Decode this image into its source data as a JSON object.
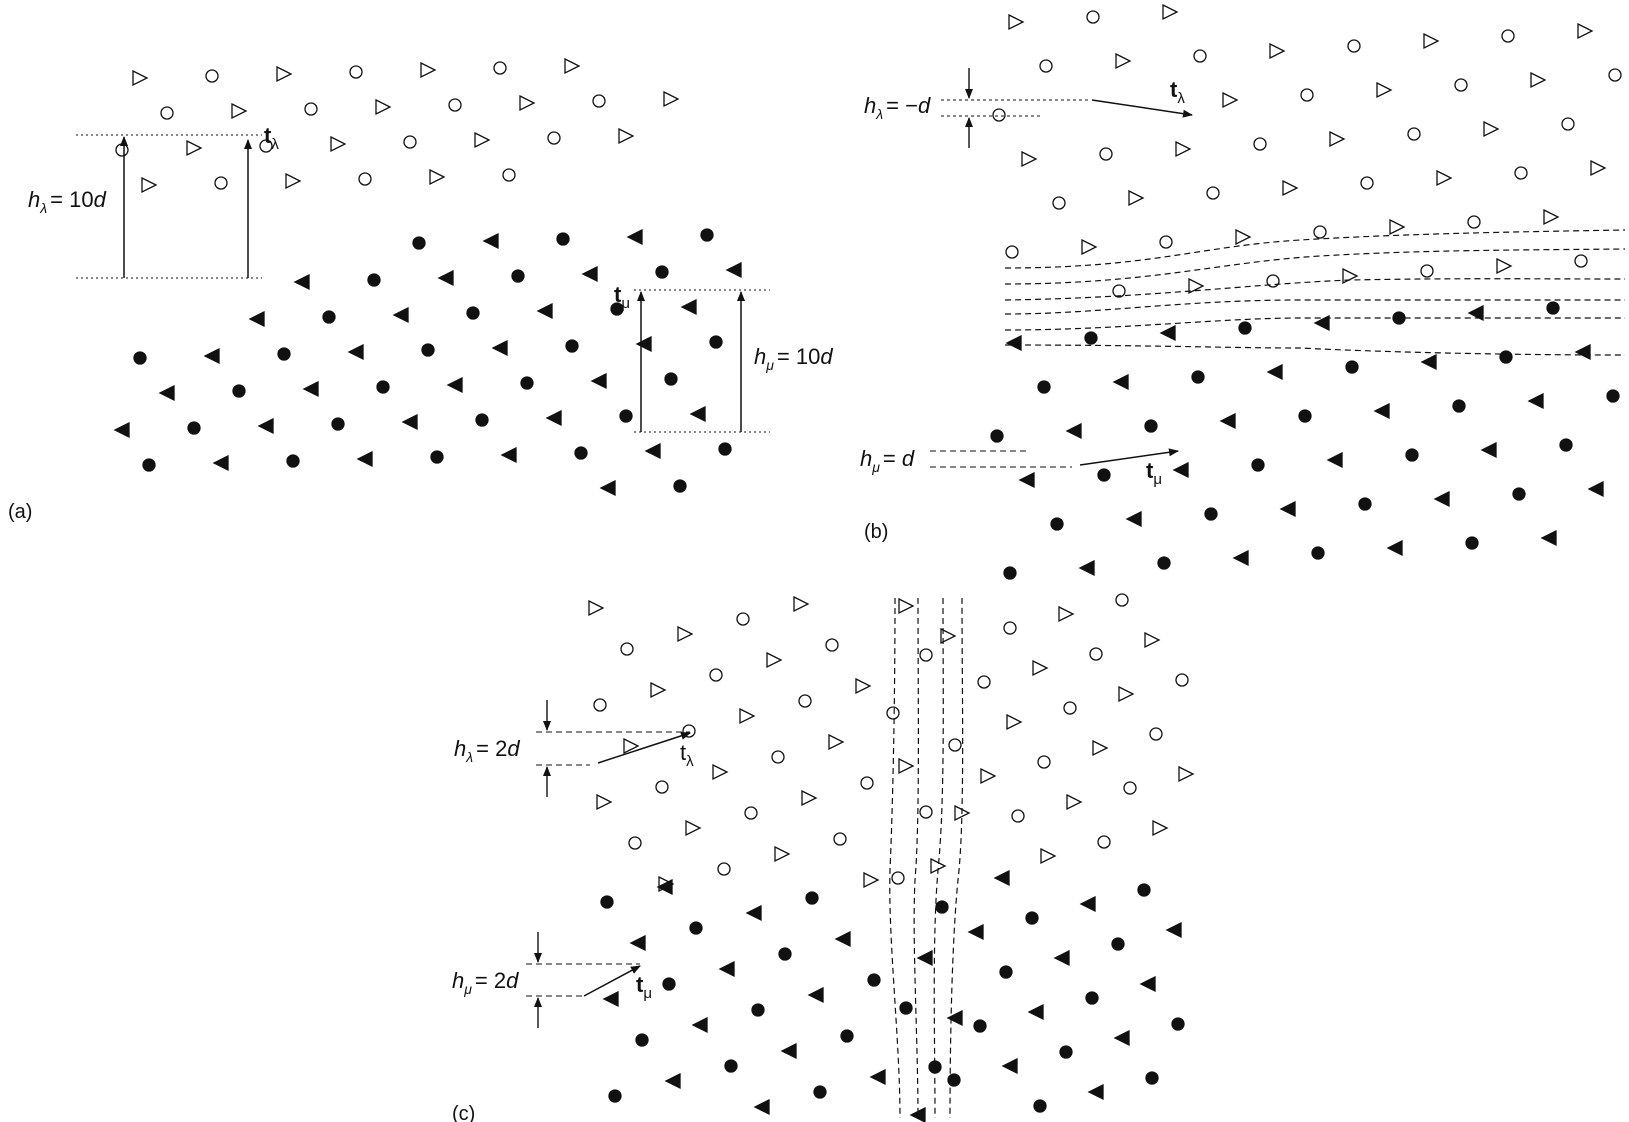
{
  "figure": {
    "panels": [
      {
        "id": "a",
        "letter": "(a)",
        "h_lambda": {
          "symbol": "h",
          "sub": "λ",
          "value": "= 10d",
          "rest": "= 10",
          "unit": "d"
        },
        "h_mu": {
          "symbol": "h",
          "sub": "μ",
          "value": "= 10d",
          "rest": "= 10",
          "unit": "d"
        },
        "t_lambda": {
          "symbol": "t",
          "sub": "λ"
        },
        "t_mu": {
          "symbol": "t",
          "sub": "μ"
        }
      },
      {
        "id": "b",
        "letter": "(b)",
        "h_lambda": {
          "symbol": "h",
          "sub": "λ",
          "rest": "= −",
          "unit": "d"
        },
        "h_mu": {
          "symbol": "h",
          "sub": "μ",
          "rest": "= ",
          "unit": "d"
        },
        "t_lambda": {
          "symbol": "t",
          "sub": "λ"
        },
        "t_mu": {
          "symbol": "t",
          "sub": "μ"
        }
      },
      {
        "id": "c",
        "letter": "(c)",
        "h_lambda": {
          "symbol": "h",
          "sub": "λ",
          "rest": "= 2",
          "unit": "d"
        },
        "h_mu": {
          "symbol": "h",
          "sub": "μ",
          "rest": "= 2",
          "unit": "d"
        },
        "t_lambda": {
          "symbol": "t",
          "sub": "λ"
        },
        "t_mu": {
          "symbol": "t",
          "sub": "μ"
        }
      }
    ],
    "legend_markers": {
      "lambda_lattice": [
        "open-triangle",
        "open-circle"
      ],
      "mu_lattice": [
        "filled-triangle",
        "filled-circle"
      ]
    },
    "colors": {
      "ink": "#111111",
      "background": "#ffffff"
    }
  }
}
